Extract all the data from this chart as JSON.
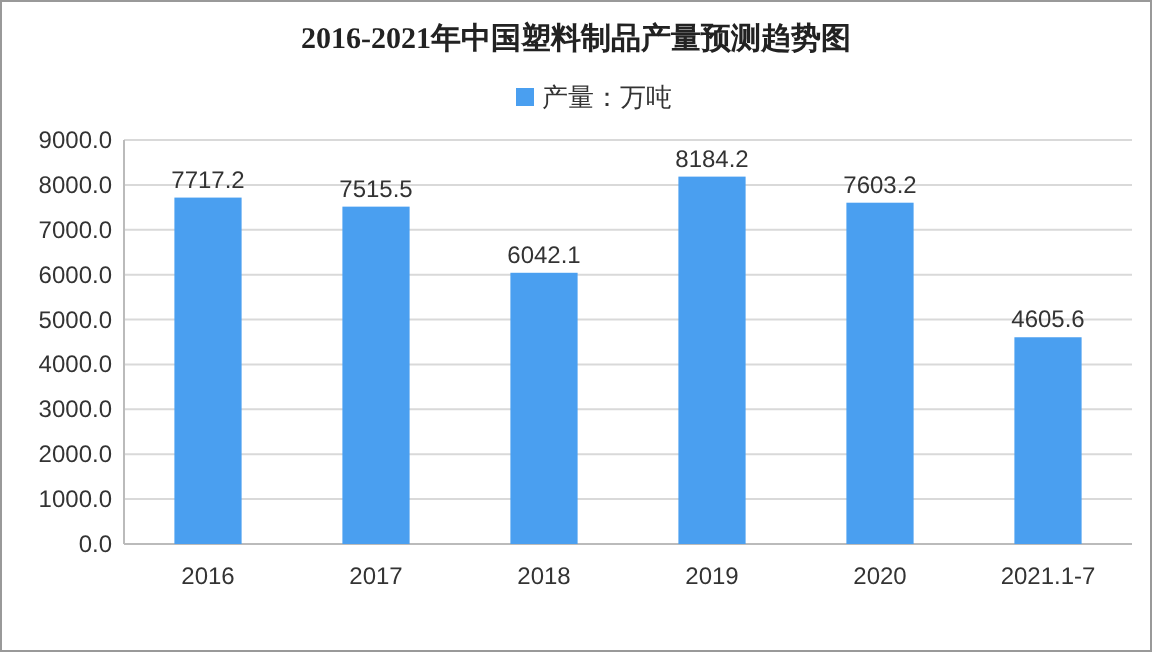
{
  "chart_data": {
    "type": "bar",
    "title": "2016-2021年中国塑料制品产量预测趋势图",
    "categories": [
      "2016",
      "2017",
      "2018",
      "2019",
      "2020",
      "2021.1-7"
    ],
    "series": [
      {
        "name": "产量：万吨",
        "color": "#4a9ff0",
        "values": [
          7717.2,
          7515.5,
          6042.1,
          8184.2,
          7603.2,
          4605.6
        ]
      }
    ],
    "ylim": [
      0,
      9000
    ],
    "yticks": [
      {
        "value": 0,
        "label": "0.0"
      },
      {
        "value": 1000,
        "label": "1000.0"
      },
      {
        "value": 2000,
        "label": "2000.0"
      },
      {
        "value": 3000,
        "label": "3000.0"
      },
      {
        "value": 4000,
        "label": "4000.0"
      },
      {
        "value": 5000,
        "label": "5000.0"
      },
      {
        "value": 6000,
        "label": "6000.0"
      },
      {
        "value": 7000,
        "label": "7000.0"
      },
      {
        "value": 8000,
        "label": "8000.0"
      },
      {
        "value": 9000,
        "label": "9000.0"
      }
    ],
    "grid": "y",
    "legend": "top",
    "data_labels": true
  }
}
